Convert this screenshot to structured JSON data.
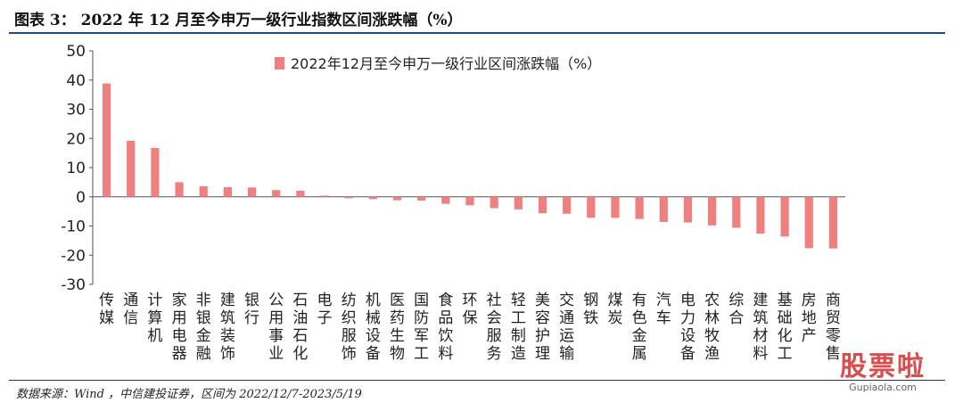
{
  "figure": {
    "title": "图表 3： 2022 年 12 月至今申万一级行业指数区间涨跌幅（%）",
    "source": "数据来源：Wind ，中信建投证券，区间为 2022/12/7-2023/5/19"
  },
  "watermark": {
    "logo": "股票啦",
    "url": "Gupiaola.com"
  },
  "colors": {
    "bar": "#f08080",
    "axis": "#555555",
    "text": "#222222"
  },
  "chart_data": {
    "type": "bar",
    "title": "",
    "xlabel": "",
    "ylabel": "",
    "ylim": [
      -30,
      50
    ],
    "yticks": [
      50,
      40,
      30,
      20,
      10,
      0,
      -10,
      -20,
      -30
    ],
    "grid": false,
    "legend_position": "top",
    "categories": [
      "传媒",
      "通信",
      "计算机",
      "家用电器",
      "非银金融",
      "建筑装饰",
      "银行",
      "公用事业",
      "石油石化",
      "电子",
      "纺织服饰",
      "机械设备",
      "医药生物",
      "国防军工",
      "食品饮料",
      "环保",
      "社会服务",
      "轻工制造",
      "美容护理",
      "交通运输",
      "钢铁",
      "煤炭",
      "有色金属",
      "汽车",
      "电力设备",
      "农林牧渔",
      "综合",
      "建筑材料",
      "基础化工",
      "房地产",
      "商贸零售"
    ],
    "series": [
      {
        "name": "2022年12月至今申万一级行业区间涨跌幅（%）",
        "values": [
          38.8,
          19.2,
          16.7,
          5.0,
          3.6,
          3.3,
          3.2,
          2.3,
          2.1,
          0.4,
          -0.5,
          -0.8,
          -1.2,
          -1.3,
          -2.4,
          -2.9,
          -3.9,
          -4.3,
          -5.6,
          -5.8,
          -7.2,
          -7.2,
          -7.6,
          -8.6,
          -8.8,
          -9.8,
          -10.6,
          -12.6,
          -13.6,
          -17.6,
          -17.7
        ]
      }
    ]
  }
}
